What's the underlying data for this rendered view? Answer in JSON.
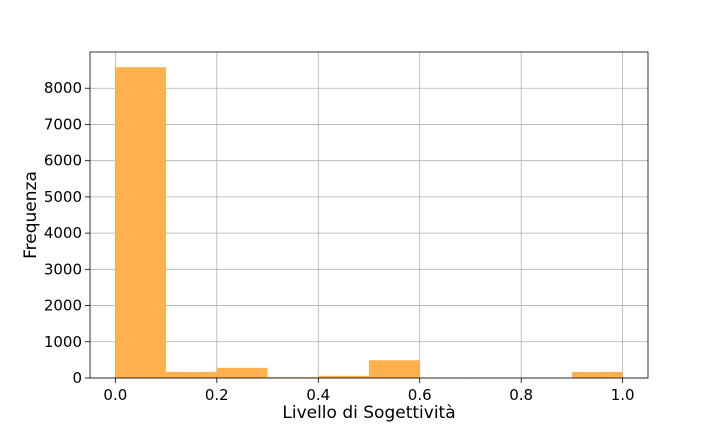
{
  "chart_data": {
    "type": "bar",
    "title": "",
    "xlabel": "Livello di Sogettività",
    "ylabel": "Frequenza",
    "bin_edges": [
      0.0,
      0.1,
      0.2,
      0.3,
      0.4,
      0.5,
      0.6,
      0.7,
      0.8,
      0.9,
      1.0
    ],
    "values": [
      8580,
      170,
      280,
      20,
      60,
      490,
      15,
      0,
      0,
      170
    ],
    "xlim": [
      -0.05,
      1.05
    ],
    "ylim": [
      0,
      9000
    ],
    "xticks": [
      0.0,
      0.2,
      0.4,
      0.6,
      0.8,
      1.0
    ],
    "xtick_labels": [
      "0.0",
      "0.2",
      "0.4",
      "0.6",
      "0.8",
      "1.0"
    ],
    "yticks": [
      0,
      1000,
      2000,
      3000,
      4000,
      5000,
      6000,
      7000,
      8000
    ],
    "ytick_labels": [
      "0",
      "1000",
      "2000",
      "3000",
      "4000",
      "5000",
      "6000",
      "7000",
      "8000"
    ],
    "grid": true,
    "bar_color": "#ffb14e"
  }
}
